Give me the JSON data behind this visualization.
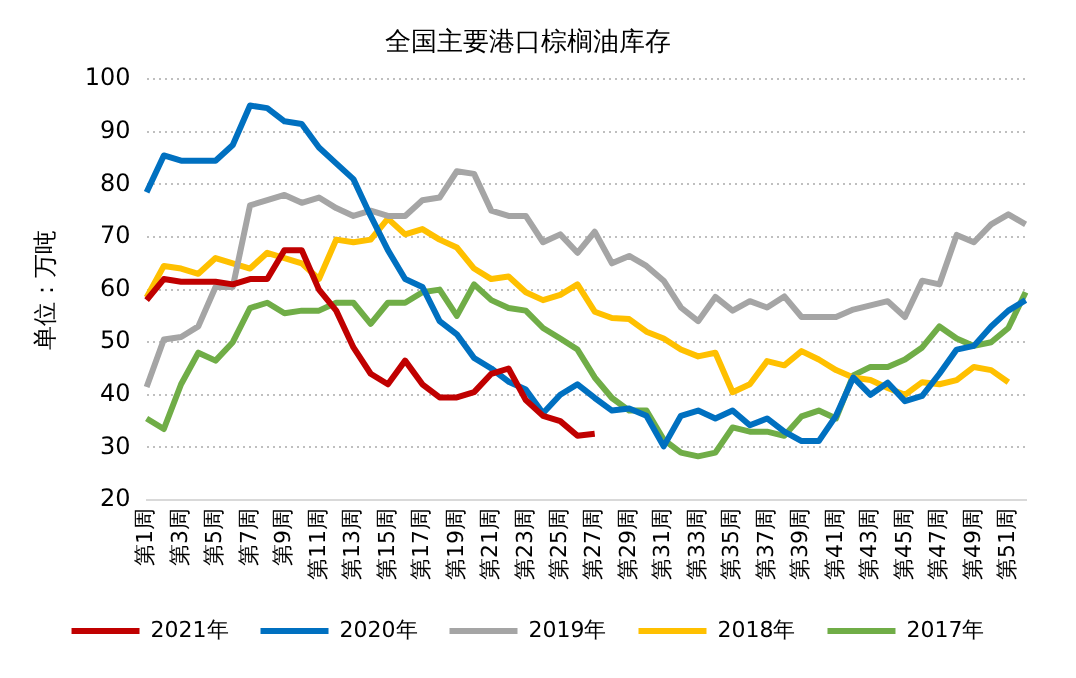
{
  "chart_data": {
    "type": "line",
    "title": "全国主要港口棕榈油库存",
    "ylabel": "单位：万吨",
    "categories": [
      "第1周",
      null,
      "第3周",
      null,
      "第5周",
      null,
      "第7周",
      null,
      "第9周",
      null,
      "第11周",
      null,
      "第13周",
      null,
      "第15周",
      null,
      "第17周",
      null,
      "第19周",
      null,
      "第21周",
      null,
      "第23周",
      null,
      "第25周",
      null,
      "第27周",
      null,
      "第29周",
      null,
      "第31周",
      null,
      "第33周",
      null,
      "第35周",
      null,
      "第37周",
      null,
      "第39周",
      null,
      "第41周",
      null,
      "第43周",
      null,
      "第45周",
      null,
      "第47周",
      null,
      "第49周",
      null,
      "第51周",
      null
    ],
    "ylim": [
      20,
      100
    ],
    "yticks": [
      20,
      30,
      40,
      50,
      60,
      70,
      80,
      90,
      100
    ],
    "grid": "y",
    "legend": "bottom",
    "marker": "none",
    "line_style": "solid",
    "series": [
      {
        "name": "2021年",
        "color": "#c00000",
        "values": [
          58,
          62,
          61.5,
          61.5,
          61.5,
          61,
          62,
          62,
          67.5,
          67.5,
          60,
          56,
          49,
          44,
          42,
          46.5,
          42,
          39.5,
          39.5,
          40.5,
          44,
          45,
          39,
          36,
          35,
          32.2,
          32.6,
          null,
          null,
          null,
          null,
          null,
          null,
          null,
          null,
          null,
          null,
          null,
          null,
          null,
          null,
          null,
          null,
          null,
          null,
          null,
          null,
          null,
          null,
          null,
          null,
          null
        ]
      },
      {
        "name": "2020年",
        "color": "#0070c0",
        "values": [
          78.5,
          85.5,
          84.5,
          84.5,
          84.5,
          87.5,
          95,
          94.5,
          92,
          91.5,
          87,
          84,
          81,
          74,
          67.5,
          62,
          60.5,
          54,
          51.5,
          47,
          45,
          42.5,
          41,
          36.5,
          40,
          42,
          39.4,
          37,
          37.4,
          36,
          30.2,
          36,
          37,
          35.5,
          37,
          34.2,
          35.5,
          33,
          31.2,
          31.2,
          36,
          43.3,
          40,
          42.3,
          38.8,
          39.8,
          44,
          48.6,
          49.3,
          53,
          56,
          58
        ]
      },
      {
        "name": "2019年",
        "color": "#a5a5a5",
        "values": [
          41.5,
          50.5,
          51,
          53,
          60.5,
          60.5,
          76,
          77,
          78,
          76.5,
          77.5,
          75.5,
          74,
          75,
          74,
          74,
          77,
          77.5,
          82.5,
          82,
          75,
          74,
          74,
          69,
          70.5,
          67,
          71,
          65,
          66.4,
          64.5,
          61.7,
          56.6,
          54,
          58.6,
          56,
          57.8,
          56.6,
          58.7,
          54.8,
          54.8,
          54.8,
          56.2,
          57,
          57.8,
          54.8,
          61.7,
          61,
          70.4,
          69,
          72.4,
          74.3,
          72.4
        ]
      },
      {
        "name": "2018年",
        "color": "#ffc000",
        "values": [
          58.5,
          64.5,
          64,
          63,
          66,
          65,
          64,
          67,
          66,
          65,
          62,
          69.5,
          69,
          69.5,
          73.5,
          70.5,
          71.5,
          69.5,
          68,
          64,
          62,
          62.5,
          59.5,
          58,
          59,
          61,
          55.8,
          54.6,
          54.4,
          52,
          50.7,
          48.6,
          47.3,
          48,
          40.5,
          42,
          46.4,
          45.6,
          48.3,
          46.7,
          44.7,
          43.3,
          42.8,
          41.3,
          40,
          42.4,
          42,
          42.8,
          45.3,
          44.7,
          42.4,
          null
        ]
      },
      {
        "name": "2017年",
        "color": "#70ad47",
        "values": [
          35.5,
          33.5,
          42,
          48,
          46.5,
          50,
          56.5,
          57.5,
          55.5,
          56,
          56,
          57.5,
          57.5,
          53.5,
          57.5,
          57.5,
          59.5,
          60,
          55,
          61,
          58,
          56.5,
          56,
          52.7,
          50.7,
          48.6,
          43.3,
          39.4,
          37,
          37,
          31.5,
          29,
          28.3,
          29,
          33.8,
          33,
          33,
          32.2,
          35.9,
          37,
          35.5,
          43.7,
          45.3,
          45.3,
          46.7,
          49,
          53,
          50.7,
          49.3,
          50,
          52.7,
          59.5
        ]
      }
    ]
  }
}
